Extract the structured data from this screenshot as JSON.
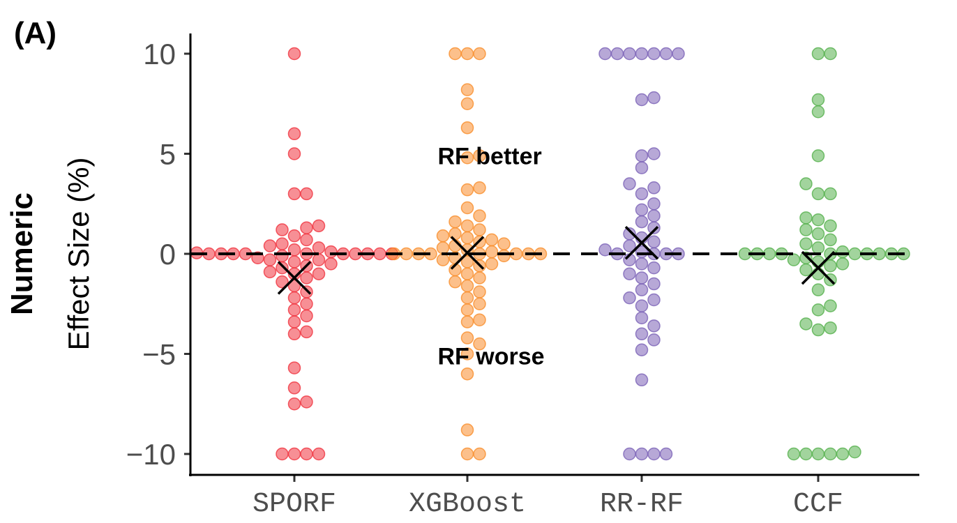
{
  "chart_data": {
    "type": "scatter",
    "panel_label": "(A)",
    "title": "",
    "ylabel_bold": "Numeric",
    "ylabel": "Effect Size (%)",
    "ylim": [
      -10.5,
      10.5
    ],
    "yticks": [
      10,
      5,
      0,
      -5,
      -10
    ],
    "ytick_labels": [
      "10",
      "5",
      "0",
      "−5",
      "−10"
    ],
    "reference_line": 0,
    "annotations": [
      {
        "text": "RF better",
        "x": 1.5,
        "y": 4.9
      },
      {
        "text": "RF worse",
        "x": 1.5,
        "y": -5.1
      }
    ],
    "categories": [
      "SPORF",
      "XGBoost",
      "RR-RF",
      "CCF"
    ],
    "colors": [
      "#f0333e",
      "#f98d2b",
      "#7b61b6",
      "#55b04c"
    ],
    "series": [
      {
        "values": [
          10,
          6,
          5,
          3,
          3,
          1.4,
          1.3,
          1.2,
          0.9,
          0.7,
          0.5,
          0.4,
          0.3,
          0.2,
          0.1,
          0.05,
          0,
          0,
          0,
          0,
          0,
          0,
          0,
          0,
          0,
          0,
          -0.1,
          -0.2,
          -0.3,
          -0.3,
          -0.4,
          -0.5,
          -0.6,
          -0.7,
          -0.9,
          -1.0,
          -1.0,
          -1.2,
          -1.4,
          -1.6,
          -1.9,
          -2.2,
          -2.5,
          -2.8,
          -3.1,
          -3.4,
          -3.9,
          -4.0,
          -5.7,
          -6.7,
          -7.4,
          -7.5,
          -10,
          -10,
          -10,
          -10
        ],
        "mean": -1.2
      },
      {
        "values": [
          10,
          10,
          10,
          8.2,
          7.5,
          6.3,
          4.9,
          4.8,
          3.3,
          3.2,
          2.3,
          1.9,
          1.6,
          1.4,
          1.2,
          1.0,
          0.9,
          0.8,
          0.7,
          0.6,
          0.5,
          0.4,
          0.3,
          0.2,
          0.1,
          0,
          0,
          0,
          0,
          0,
          0,
          0,
          0,
          -0.1,
          -0.2,
          -0.3,
          -0.4,
          -0.5,
          -0.6,
          -0.8,
          -1.0,
          -1.2,
          -1.4,
          -1.6,
          -1.9,
          -2.2,
          -2.5,
          -2.8,
          -3.3,
          -3.4,
          -4.2,
          -4.5,
          -5.0,
          -6.0,
          -8.8,
          -10,
          -10
        ],
        "mean": 0.05
      },
      {
        "values": [
          10,
          10,
          10,
          10,
          10,
          10,
          10,
          7.8,
          7.7,
          5.0,
          4.9,
          4.3,
          3.5,
          3.3,
          3.0,
          2.5,
          2.2,
          1.9,
          1.6,
          1.3,
          1.0,
          0.8,
          0.6,
          0.4,
          0.2,
          0.1,
          0,
          0,
          0,
          0,
          -0.3,
          -0.5,
          -0.7,
          -1.0,
          -1.2,
          -1.5,
          -1.8,
          -2.2,
          -2.3,
          -2.6,
          -3.2,
          -3.6,
          -4.0,
          -4.3,
          -4.8,
          -6.3,
          -10,
          -10,
          -10,
          -10
        ],
        "mean": 0.55
      },
      {
        "values": [
          10,
          10,
          7.7,
          7.1,
          4.9,
          3.5,
          3.0,
          3.0,
          1.8,
          1.7,
          1.4,
          1.2,
          1.0,
          0.7,
          0.5,
          0.3,
          0.1,
          0,
          0,
          0,
          0,
          0,
          0,
          0,
          0,
          0,
          0,
          -0.2,
          -0.3,
          -0.4,
          -0.5,
          -0.6,
          -0.8,
          -1.0,
          -1.3,
          -1.8,
          -2.6,
          -2.8,
          -3.5,
          -3.7,
          -3.8,
          -9.9,
          -10,
          -10,
          -10,
          -10,
          -10
        ],
        "mean": -0.7
      }
    ]
  }
}
